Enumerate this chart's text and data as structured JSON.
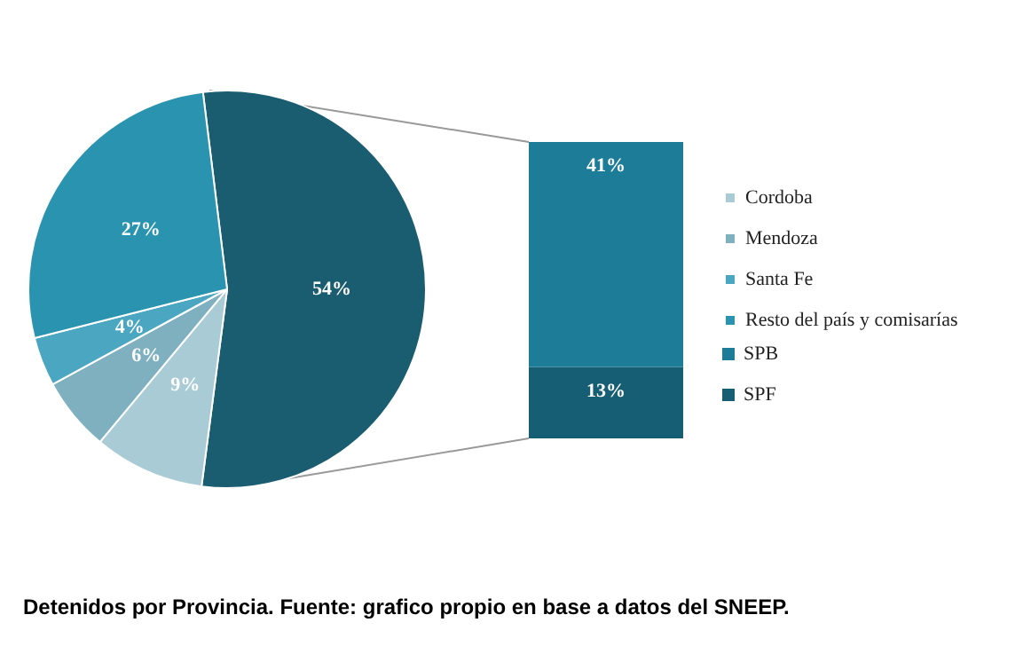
{
  "chart_data": [
    {
      "type": "pie",
      "title": "Detenidos por Provincia. Fuente: grafico propio en base a datos del SNEEP.",
      "categories": [
        null,
        "Cordoba",
        "Mendoza",
        "Santa Fe",
        "Resto del país y comisarías"
      ],
      "values": [
        54,
        9,
        6,
        4,
        27
      ],
      "colors": [
        "#1a5d70",
        "#a9cbd6",
        "#7fb0c0",
        "#4ba6c1",
        "#2a93b0"
      ],
      "value_labels": [
        "54%",
        "9%",
        "6%",
        "4%",
        "27%"
      ],
      "legend": "right"
    },
    {
      "type": "bar",
      "stacked": true,
      "categories": [
        null
      ],
      "series": [
        {
          "name": "SPF",
          "color": "#155e74",
          "values": [
            13
          ],
          "value_labels": [
            "13%"
          ]
        },
        {
          "name": "SPB",
          "color": "#1d7d98",
          "values": [
            41
          ],
          "value_labels": [
            "41%"
          ]
        }
      ],
      "legend": "right"
    }
  ]
}
